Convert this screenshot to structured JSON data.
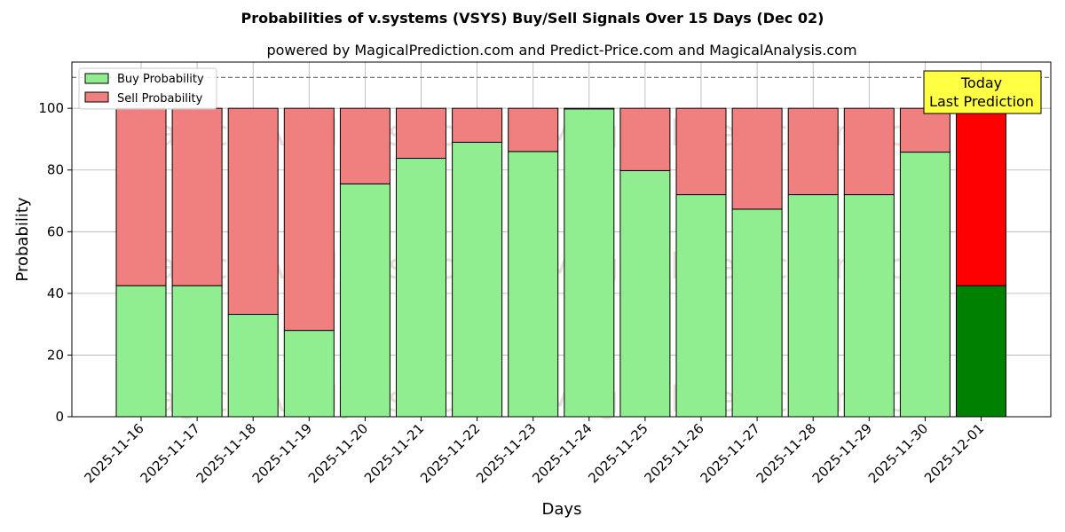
{
  "chart_data": {
    "type": "bar",
    "stacked": true,
    "title": "Probabilities of v.systems (VSYS) Buy/Sell Signals Over 15 Days (Dec 02)",
    "subtitle": "powered by MagicalPrediction.com and Predict-Price.com and MagicalAnalysis.com",
    "xlabel": "Days",
    "ylabel": "Probability",
    "ylim": [
      0,
      115
    ],
    "yticks": [
      0,
      20,
      40,
      60,
      80,
      100
    ],
    "grid": true,
    "legend_position": "top-left",
    "reference_line": 110,
    "categories": [
      "2025-11-16",
      "2025-11-17",
      "2025-11-18",
      "2025-11-19",
      "2025-11-20",
      "2025-11-21",
      "2025-11-22",
      "2025-11-23",
      "2025-11-24",
      "2025-11-25",
      "2025-11-26",
      "2025-11-27",
      "2025-11-28",
      "2025-11-29",
      "2025-11-30",
      "2025-12-01"
    ],
    "series": [
      {
        "name": "Buy Probability",
        "color": "#90ee90",
        "values": [
          42.5,
          42.5,
          33.2,
          28.0,
          75.5,
          83.8,
          89.0,
          86.0,
          99.8,
          79.8,
          72.0,
          67.3,
          72.0,
          72.0,
          85.8,
          42.5
        ]
      },
      {
        "name": "Sell Probability",
        "color": "#f08080",
        "values": [
          57.5,
          57.5,
          66.8,
          72.0,
          24.5,
          16.2,
          11.0,
          14.0,
          0.2,
          20.2,
          28.0,
          32.7,
          28.0,
          28.0,
          14.2,
          57.5
        ]
      }
    ],
    "highlight": {
      "index": 15,
      "buy_color": "#008000",
      "sell_color": "#ff0000"
    },
    "annotation": {
      "lines": [
        "Today",
        "Last Prediction"
      ],
      "bg_color": "#ffff44"
    },
    "watermarks": [
      "MagicalAnalysis.com",
      "MagicalPrediction.com"
    ]
  }
}
